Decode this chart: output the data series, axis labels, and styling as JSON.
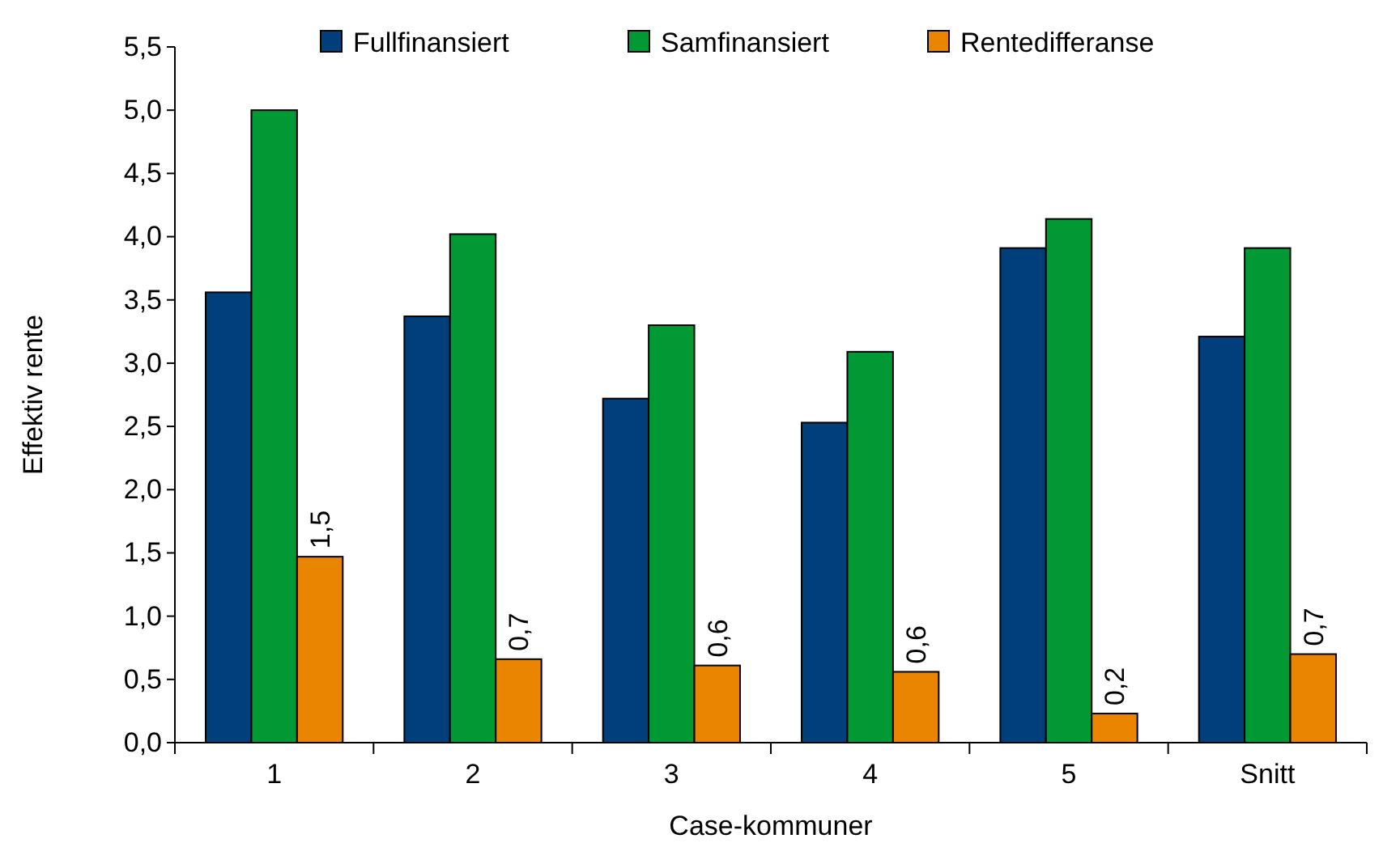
{
  "chart_data": {
    "type": "bar",
    "xlabel": "Case-kommuner",
    "ylabel": "Effektiv rente",
    "categories": [
      "1",
      "2",
      "3",
      "4",
      "5",
      "Snitt"
    ],
    "series": [
      {
        "name": "Fullfinansiert",
        "color": "#003f7a",
        "values": [
          3.56,
          3.37,
          2.72,
          2.53,
          3.91,
          3.21
        ]
      },
      {
        "name": "Samfinansiert",
        "color": "#009933",
        "values": [
          5.0,
          4.02,
          3.3,
          3.09,
          4.14,
          3.91
        ]
      },
      {
        "name": "Rentedifferanse",
        "color": "#e98500",
        "values": [
          1.47,
          0.66,
          0.61,
          0.56,
          0.23,
          0.7
        ],
        "value_labels": [
          "1,5",
          "0,7",
          "0,6",
          "0,6",
          "0,2",
          "0,7"
        ]
      }
    ],
    "ylim": [
      0,
      5.5
    ],
    "yticks": [
      {
        "value": 0,
        "label": "0,0"
      },
      {
        "value": 0.5,
        "label": "0,5"
      },
      {
        "value": 1,
        "label": "1,0"
      },
      {
        "value": 1.5,
        "label": "1,5"
      },
      {
        "value": 2,
        "label": "2,0"
      },
      {
        "value": 2.5,
        "label": "2,5"
      },
      {
        "value": 3,
        "label": "3,0"
      },
      {
        "value": 3.5,
        "label": "3,5"
      },
      {
        "value": 4,
        "label": "4,0"
      },
      {
        "value": 4.5,
        "label": "4,5"
      },
      {
        "value": 5,
        "label": "5,0"
      },
      {
        "value": 5.5,
        "label": "5,5"
      }
    ],
    "grid": false,
    "legend": "top"
  }
}
